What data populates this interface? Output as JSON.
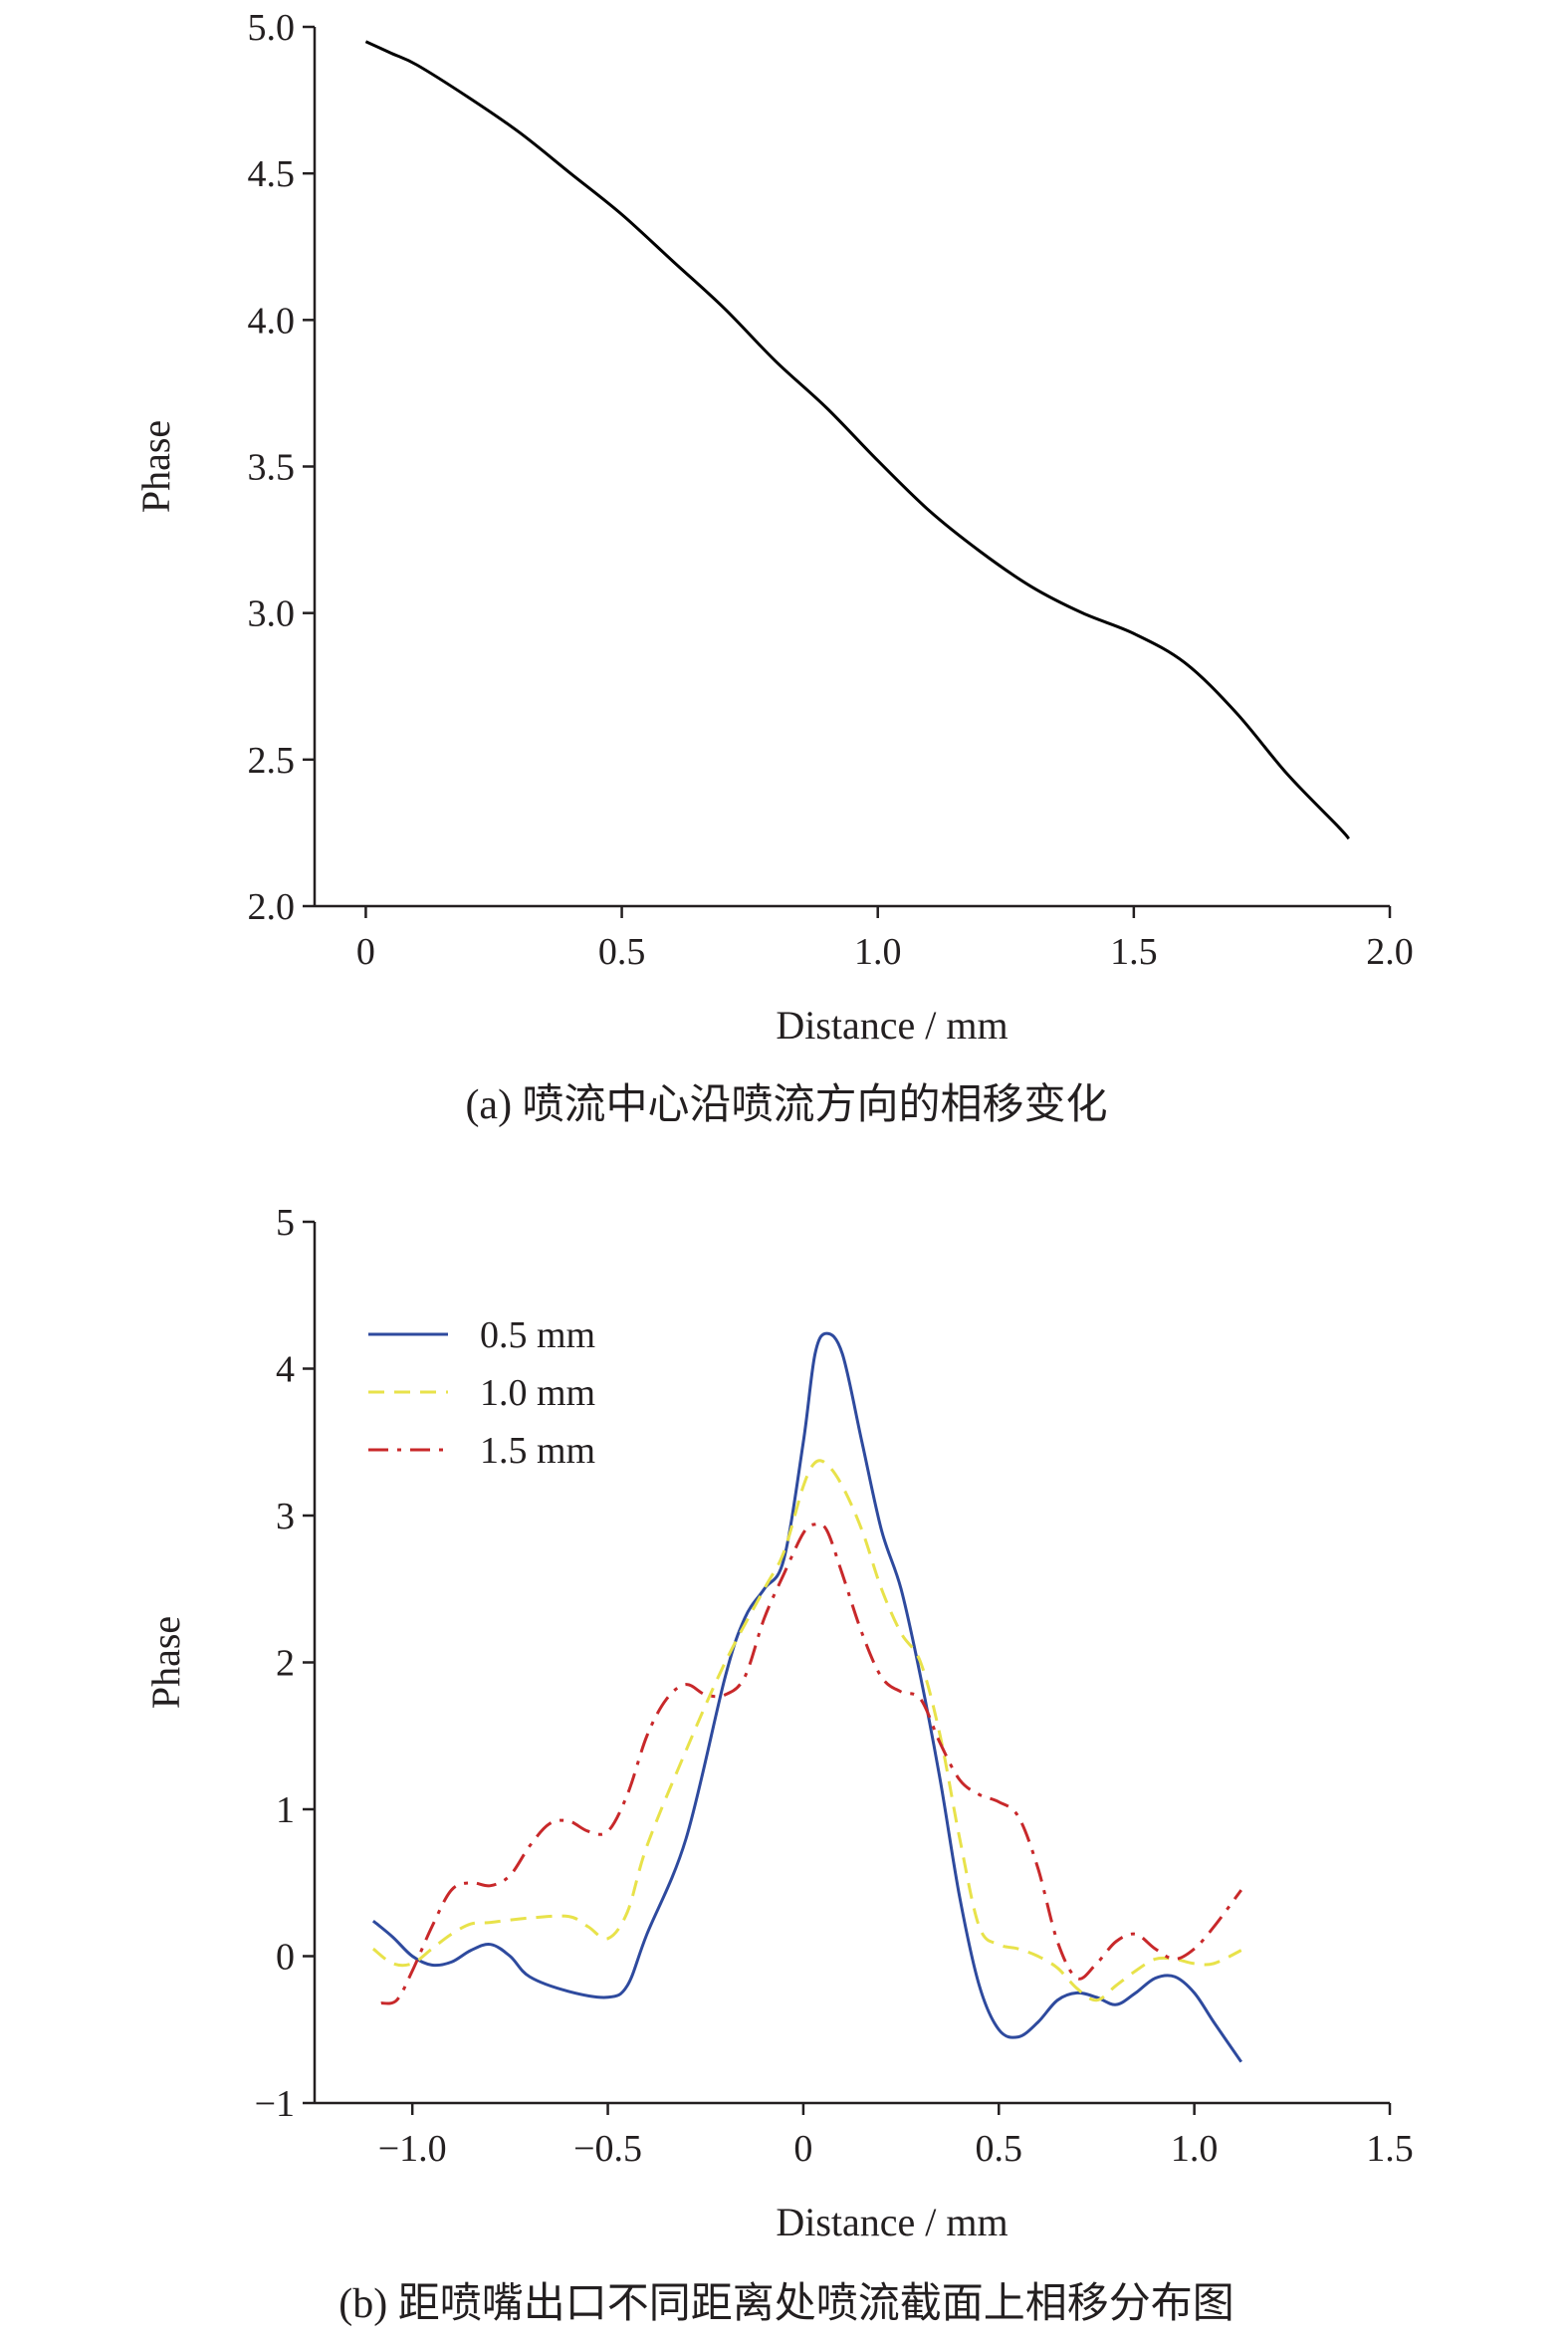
{
  "chart_data": [
    {
      "id": "a",
      "type": "line",
      "caption": "(a) 喷流中心沿喷流方向的相移变化",
      "xlabel": "Distance / mm",
      "ylabel": "Phase",
      "xlim": [
        -0.1,
        2.0
      ],
      "ylim": [
        2.0,
        5.0
      ],
      "xticks": [
        0,
        0.5,
        1.0,
        1.5,
        2.0
      ],
      "xtick_labels": [
        "0",
        "0.5",
        "1.0",
        "1.5",
        "2.0"
      ],
      "yticks": [
        2.0,
        2.5,
        3.0,
        3.5,
        4.0,
        4.5,
        5.0
      ],
      "ytick_labels": [
        "2.0",
        "2.5",
        "3.0",
        "3.5",
        "4.0",
        "4.5",
        "5.0"
      ],
      "grid": false,
      "series": [
        {
          "color": "#000000",
          "style": "solid",
          "x": [
            0.0,
            0.05,
            0.1,
            0.2,
            0.3,
            0.4,
            0.5,
            0.6,
            0.7,
            0.8,
            0.9,
            1.0,
            1.1,
            1.2,
            1.3,
            1.4,
            1.5,
            1.6,
            1.7,
            1.8,
            1.9,
            1.92
          ],
          "y": [
            4.95,
            4.91,
            4.87,
            4.76,
            4.64,
            4.5,
            4.36,
            4.2,
            4.04,
            3.86,
            3.7,
            3.52,
            3.35,
            3.21,
            3.09,
            3.0,
            2.93,
            2.83,
            2.66,
            2.45,
            2.27,
            2.23
          ]
        }
      ]
    },
    {
      "id": "b",
      "type": "line",
      "caption": "(b) 距喷嘴出口不同距离处喷流截面上相移分布图",
      "xlabel": "Distance / mm",
      "ylabel": "Phase",
      "xlim": [
        -1.25,
        1.5
      ],
      "ylim": [
        -1,
        5
      ],
      "xticks": [
        -1.0,
        -0.5,
        0,
        0.5,
        1.0,
        1.5
      ],
      "xtick_labels": [
        "−1.0",
        "−0.5",
        "0",
        "0.5",
        "1.0",
        "1.5"
      ],
      "yticks": [
        -1,
        0,
        1,
        2,
        3,
        4,
        5
      ],
      "ytick_labels": [
        "−1",
        "0",
        "1",
        "2",
        "3",
        "4",
        "5"
      ],
      "grid": false,
      "legend_position": "top-left",
      "series": [
        {
          "name": "0.5 mm",
          "color": "#2e4a9e",
          "style": "solid",
          "x": [
            -1.1,
            -1.05,
            -1.0,
            -0.95,
            -0.9,
            -0.85,
            -0.8,
            -0.75,
            -0.7,
            -0.6,
            -0.5,
            -0.45,
            -0.4,
            -0.3,
            -0.2,
            -0.15,
            -0.1,
            -0.05,
            0.0,
            0.03,
            0.06,
            0.1,
            0.15,
            0.2,
            0.25,
            0.3,
            0.35,
            0.4,
            0.45,
            0.5,
            0.55,
            0.6,
            0.65,
            0.7,
            0.75,
            0.8,
            0.85,
            0.9,
            0.95,
            1.0,
            1.05,
            1.12
          ],
          "y": [
            0.24,
            0.13,
            0.0,
            -0.06,
            -0.04,
            0.04,
            0.08,
            0.0,
            -0.14,
            -0.24,
            -0.28,
            -0.2,
            0.15,
            0.8,
            1.9,
            2.3,
            2.5,
            2.7,
            3.5,
            4.1,
            4.24,
            4.1,
            3.5,
            2.9,
            2.5,
            1.9,
            1.2,
            0.4,
            -0.2,
            -0.5,
            -0.55,
            -0.45,
            -0.3,
            -0.25,
            -0.28,
            -0.33,
            -0.25,
            -0.15,
            -0.14,
            -0.25,
            -0.45,
            -0.72
          ]
        },
        {
          "name": "1.0 mm",
          "color": "#e8e24a",
          "style": "dashed",
          "x": [
            -1.1,
            -1.05,
            -1.0,
            -0.95,
            -0.9,
            -0.85,
            -0.8,
            -0.7,
            -0.6,
            -0.55,
            -0.5,
            -0.45,
            -0.4,
            -0.3,
            -0.2,
            -0.1,
            -0.05,
            0.0,
            0.03,
            0.06,
            0.1,
            0.15,
            0.2,
            0.25,
            0.3,
            0.35,
            0.4,
            0.45,
            0.5,
            0.55,
            0.6,
            0.65,
            0.7,
            0.75,
            0.8,
            0.85,
            0.9,
            0.95,
            1.0,
            1.05,
            1.12
          ],
          "y": [
            0.05,
            -0.05,
            -0.05,
            0.05,
            0.15,
            0.22,
            0.23,
            0.26,
            0.27,
            0.2,
            0.12,
            0.3,
            0.75,
            1.4,
            2.0,
            2.5,
            2.75,
            3.2,
            3.36,
            3.35,
            3.2,
            2.9,
            2.5,
            2.2,
            2.0,
            1.5,
            0.8,
            0.2,
            0.08,
            0.05,
            0.0,
            -0.08,
            -0.22,
            -0.3,
            -0.2,
            -0.1,
            -0.02,
            -0.02,
            -0.05,
            -0.05,
            0.04
          ]
        },
        {
          "name": "1.5 mm",
          "color": "#c8282a",
          "style": "dashdot",
          "x": [
            -1.08,
            -1.04,
            -1.0,
            -0.95,
            -0.9,
            -0.85,
            -0.8,
            -0.75,
            -0.7,
            -0.65,
            -0.6,
            -0.55,
            -0.5,
            -0.45,
            -0.4,
            -0.35,
            -0.3,
            -0.25,
            -0.2,
            -0.15,
            -0.1,
            -0.05,
            0.0,
            0.03,
            0.06,
            0.1,
            0.15,
            0.2,
            0.25,
            0.3,
            0.35,
            0.4,
            0.45,
            0.5,
            0.55,
            0.6,
            0.65,
            0.7,
            0.75,
            0.8,
            0.85,
            0.9,
            0.95,
            1.0,
            1.05,
            1.12
          ],
          "y": [
            -0.32,
            -0.3,
            -0.1,
            0.2,
            0.45,
            0.5,
            0.48,
            0.55,
            0.75,
            0.9,
            0.92,
            0.85,
            0.85,
            1.1,
            1.5,
            1.75,
            1.85,
            1.78,
            1.78,
            1.9,
            2.3,
            2.6,
            2.88,
            2.94,
            2.9,
            2.6,
            2.2,
            1.9,
            1.8,
            1.75,
            1.45,
            1.2,
            1.1,
            1.05,
            0.95,
            0.6,
            0.1,
            -0.15,
            -0.05,
            0.1,
            0.15,
            0.05,
            -0.02,
            0.05,
            0.2,
            0.45
          ]
        }
      ]
    }
  ]
}
